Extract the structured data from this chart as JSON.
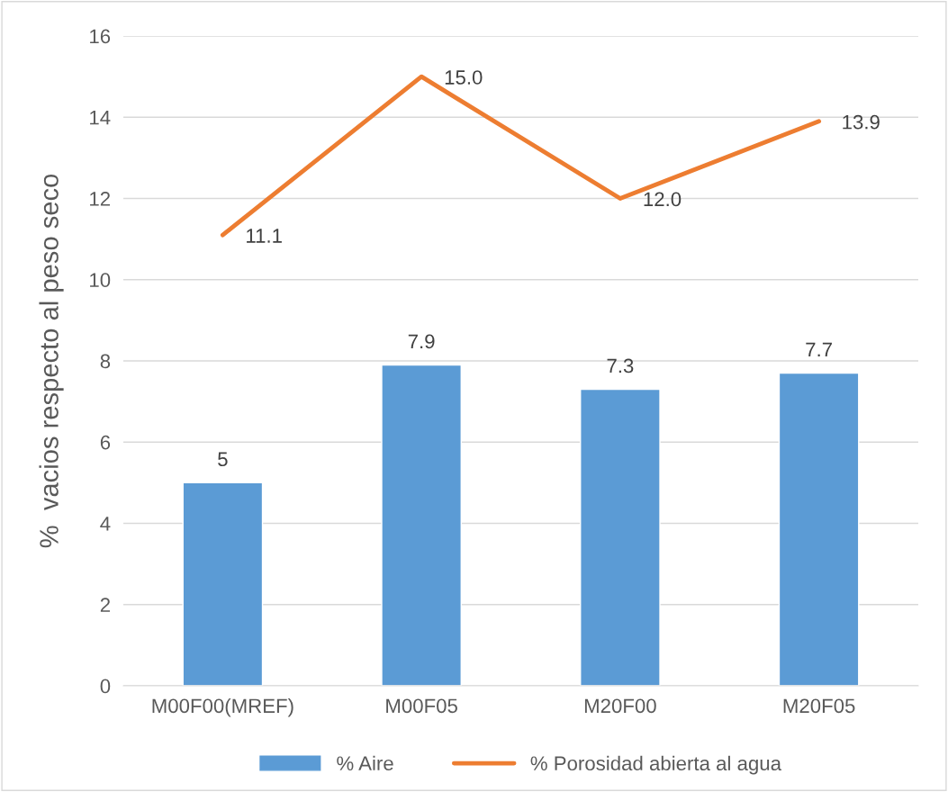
{
  "chart_data": {
    "type": "bar",
    "ylabel": "%  vacios respecto al peso seco",
    "categories": [
      "M00F00(MREF)",
      "M00F05",
      "M20F00",
      "M20F05"
    ],
    "series": [
      {
        "name": "% Aire",
        "color": "#5b9bd5",
        "values": [
          5,
          7.9,
          7.3,
          7.7
        ],
        "value_labels": [
          "5",
          "7.9",
          "7.3",
          "7.7"
        ]
      },
      {
        "name": "% Porosidad abierta al agua",
        "type": "line",
        "color": "#ed7d31",
        "values": [
          11.1,
          15.0,
          12.0,
          13.9
        ],
        "value_labels": [
          "11.1",
          "15.0",
          "12.0",
          "13.9"
        ]
      }
    ],
    "ylim": [
      0,
      16
    ],
    "yticks": [
      0,
      2,
      4,
      6,
      8,
      10,
      12,
      14,
      16
    ],
    "grid": "y",
    "legend": "bottom",
    "marker": "none"
  }
}
